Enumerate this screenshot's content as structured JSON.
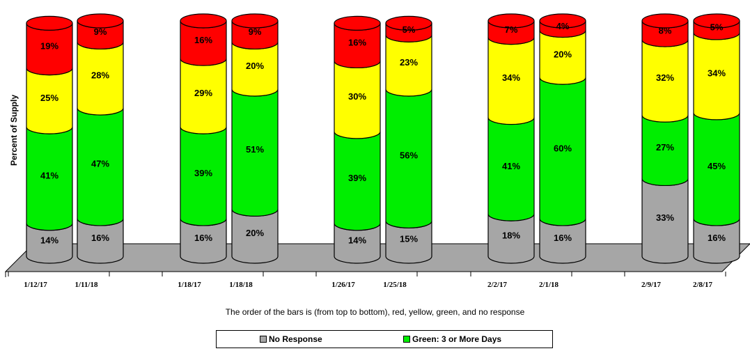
{
  "chart_data": {
    "type": "bar",
    "stacked": true,
    "ylabel": "Percent of Supply",
    "ylim": [
      0,
      100
    ],
    "grid": false,
    "legend_position": "bottom",
    "stack_order_top_to_bottom": [
      "red",
      "yellow",
      "green",
      "no response"
    ],
    "categories": [
      "1/12/17",
      "1/11/18",
      "1/18/17",
      "1/18/18",
      "1/26/17",
      "1/25/18",
      "2/2/17",
      "2/1/18",
      "2/9/17",
      "2/8/17"
    ],
    "series": [
      {
        "name": "No Response",
        "color": "#a6a6a6",
        "values": [
          14,
          16,
          16,
          20,
          14,
          15,
          18,
          16,
          33,
          16
        ]
      },
      {
        "name": "Green: 3 or More Days",
        "color": "#00ee00",
        "values": [
          41,
          47,
          39,
          51,
          39,
          56,
          41,
          60,
          27,
          45
        ]
      },
      {
        "color": "#ffff00",
        "values": [
          25,
          28,
          29,
          20,
          30,
          23,
          34,
          20,
          32,
          34
        ]
      },
      {
        "color": "#ff0000",
        "values": [
          19,
          9,
          16,
          9,
          16,
          5,
          7,
          4,
          8,
          5
        ]
      }
    ],
    "note": "The order of the bars is (from top to bottom), red, yellow, green, and no response"
  }
}
